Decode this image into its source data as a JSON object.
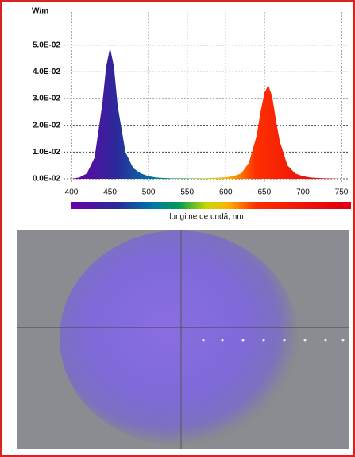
{
  "chart_data": {
    "type": "area",
    "y_label": "W/m",
    "x_label": "lungime de undă, nm",
    "x": [
      400,
      410,
      420,
      430,
      440,
      445,
      450,
      455,
      460,
      470,
      480,
      490,
      500,
      510,
      520,
      530,
      540,
      550,
      560,
      570,
      580,
      590,
      600,
      610,
      620,
      630,
      640,
      645,
      650,
      655,
      660,
      665,
      670,
      680,
      690,
      700,
      710,
      720,
      730,
      740,
      750
    ],
    "values": [
      0,
      0.0005,
      0.002,
      0.008,
      0.028,
      0.042,
      0.049,
      0.042,
      0.027,
      0.01,
      0.004,
      0.002,
      0.001,
      0.0005,
      0.0003,
      0.0002,
      0.0002,
      0.0002,
      0.0002,
      0.0002,
      0.0003,
      0.0004,
      0.0006,
      0.001,
      0.002,
      0.006,
      0.016,
      0.025,
      0.032,
      0.035,
      0.031,
      0.022,
      0.014,
      0.005,
      0.002,
      0.001,
      0.0005,
      0.0003,
      0.0002,
      0.0001,
      0
    ],
    "xlim": [
      400,
      750
    ],
    "xticks": [
      400,
      450,
      500,
      550,
      600,
      650,
      700,
      750
    ],
    "ylim": [
      0,
      0.06
    ],
    "yticks": [
      {
        "value": 0,
        "label": "0.0E-02"
      },
      {
        "value": 0.01,
        "label": "1.0E-02"
      },
      {
        "value": 0.02,
        "label": "2.0E-02"
      },
      {
        "value": 0.03,
        "label": "3.0E-02"
      },
      {
        "value": 0.04,
        "label": "4.0E-02"
      },
      {
        "value": 0.05,
        "label": "5.0E-02"
      }
    ],
    "grid": true
  }
}
